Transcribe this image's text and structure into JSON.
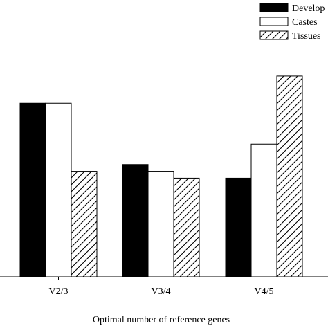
{
  "chart_data": {
    "type": "bar",
    "title": "",
    "xlabel": "Optimal number of reference genes",
    "ylabel": "",
    "categories": [
      "V2/3",
      "V3/4",
      "V4/5"
    ],
    "series": [
      {
        "name": "Develop",
        "values": [
          0.255,
          0.165,
          0.145
        ],
        "fill": "solid",
        "color": "#000000"
      },
      {
        "name": "Castes",
        "values": [
          0.255,
          0.155,
          0.195
        ],
        "fill": "hollow",
        "color": "#ffffff"
      },
      {
        "name": "Tissues",
        "values": [
          0.155,
          0.145,
          0.295
        ],
        "fill": "diagonal-hatch",
        "color": "#ffffff"
      }
    ],
    "ylim": [
      0,
      0.3
    ],
    "grid": false,
    "legend_position": "top-right"
  }
}
